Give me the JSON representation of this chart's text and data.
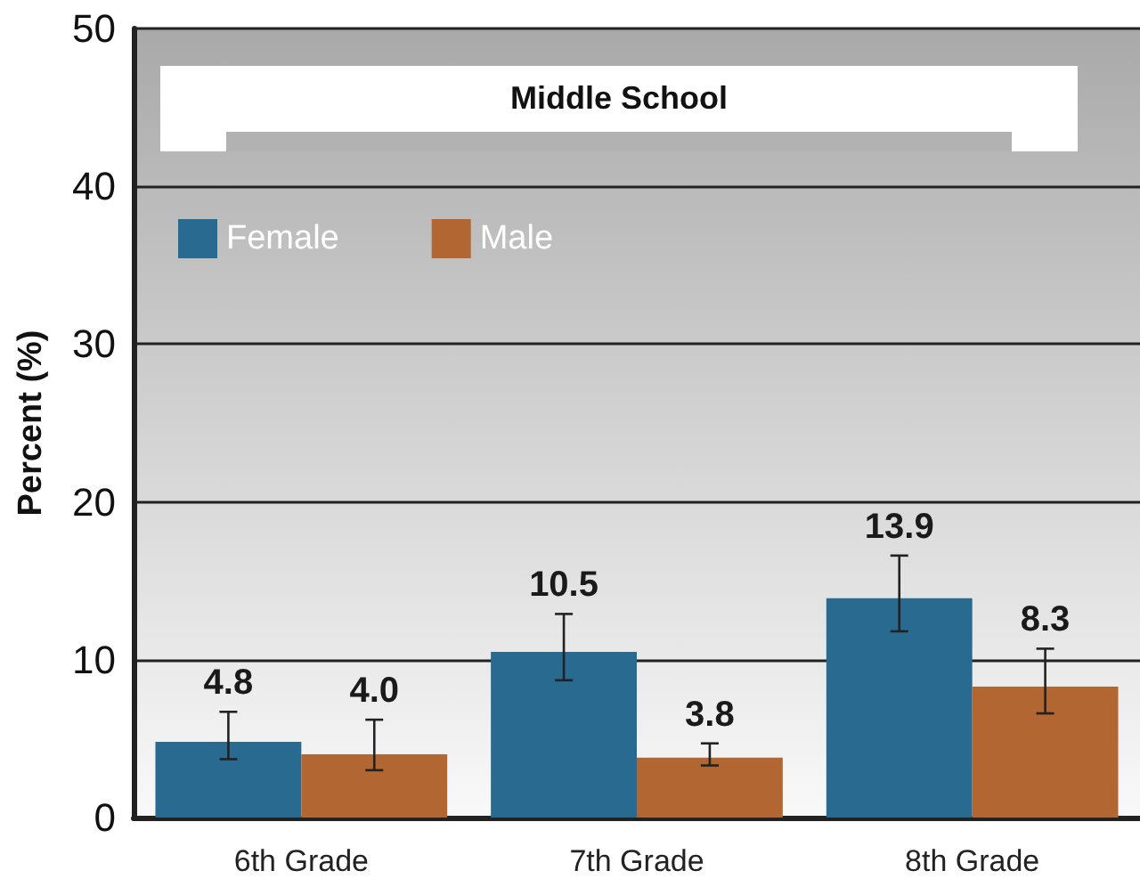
{
  "chart_data": {
    "type": "bar",
    "title": "Middle School",
    "ylabel": "Percent (%)",
    "categories": [
      "6th Grade",
      "7th Grade",
      "8th Grade"
    ],
    "series": [
      {
        "name": "Female",
        "color": "#296a91",
        "values": [
          4.8,
          10.5,
          13.9
        ],
        "value_labels": [
          "4.8",
          "10.5",
          "13.9"
        ],
        "errors": [
          [
            3.7,
            6.7
          ],
          [
            8.7,
            12.9
          ],
          [
            11.8,
            16.6
          ]
        ]
      },
      {
        "name": "Male",
        "color": "#b26631",
        "values": [
          4.0,
          3.8,
          8.3
        ],
        "value_labels": [
          "4.0",
          "3.8",
          "8.3"
        ],
        "errors": [
          [
            3.0,
            6.2
          ],
          [
            3.3,
            4.7
          ],
          [
            6.6,
            10.7
          ]
        ]
      }
    ],
    "ylim": [
      0,
      50
    ],
    "yticks": [
      0,
      10,
      20,
      30,
      40,
      50
    ],
    "grid": "y",
    "legend": "top left"
  }
}
